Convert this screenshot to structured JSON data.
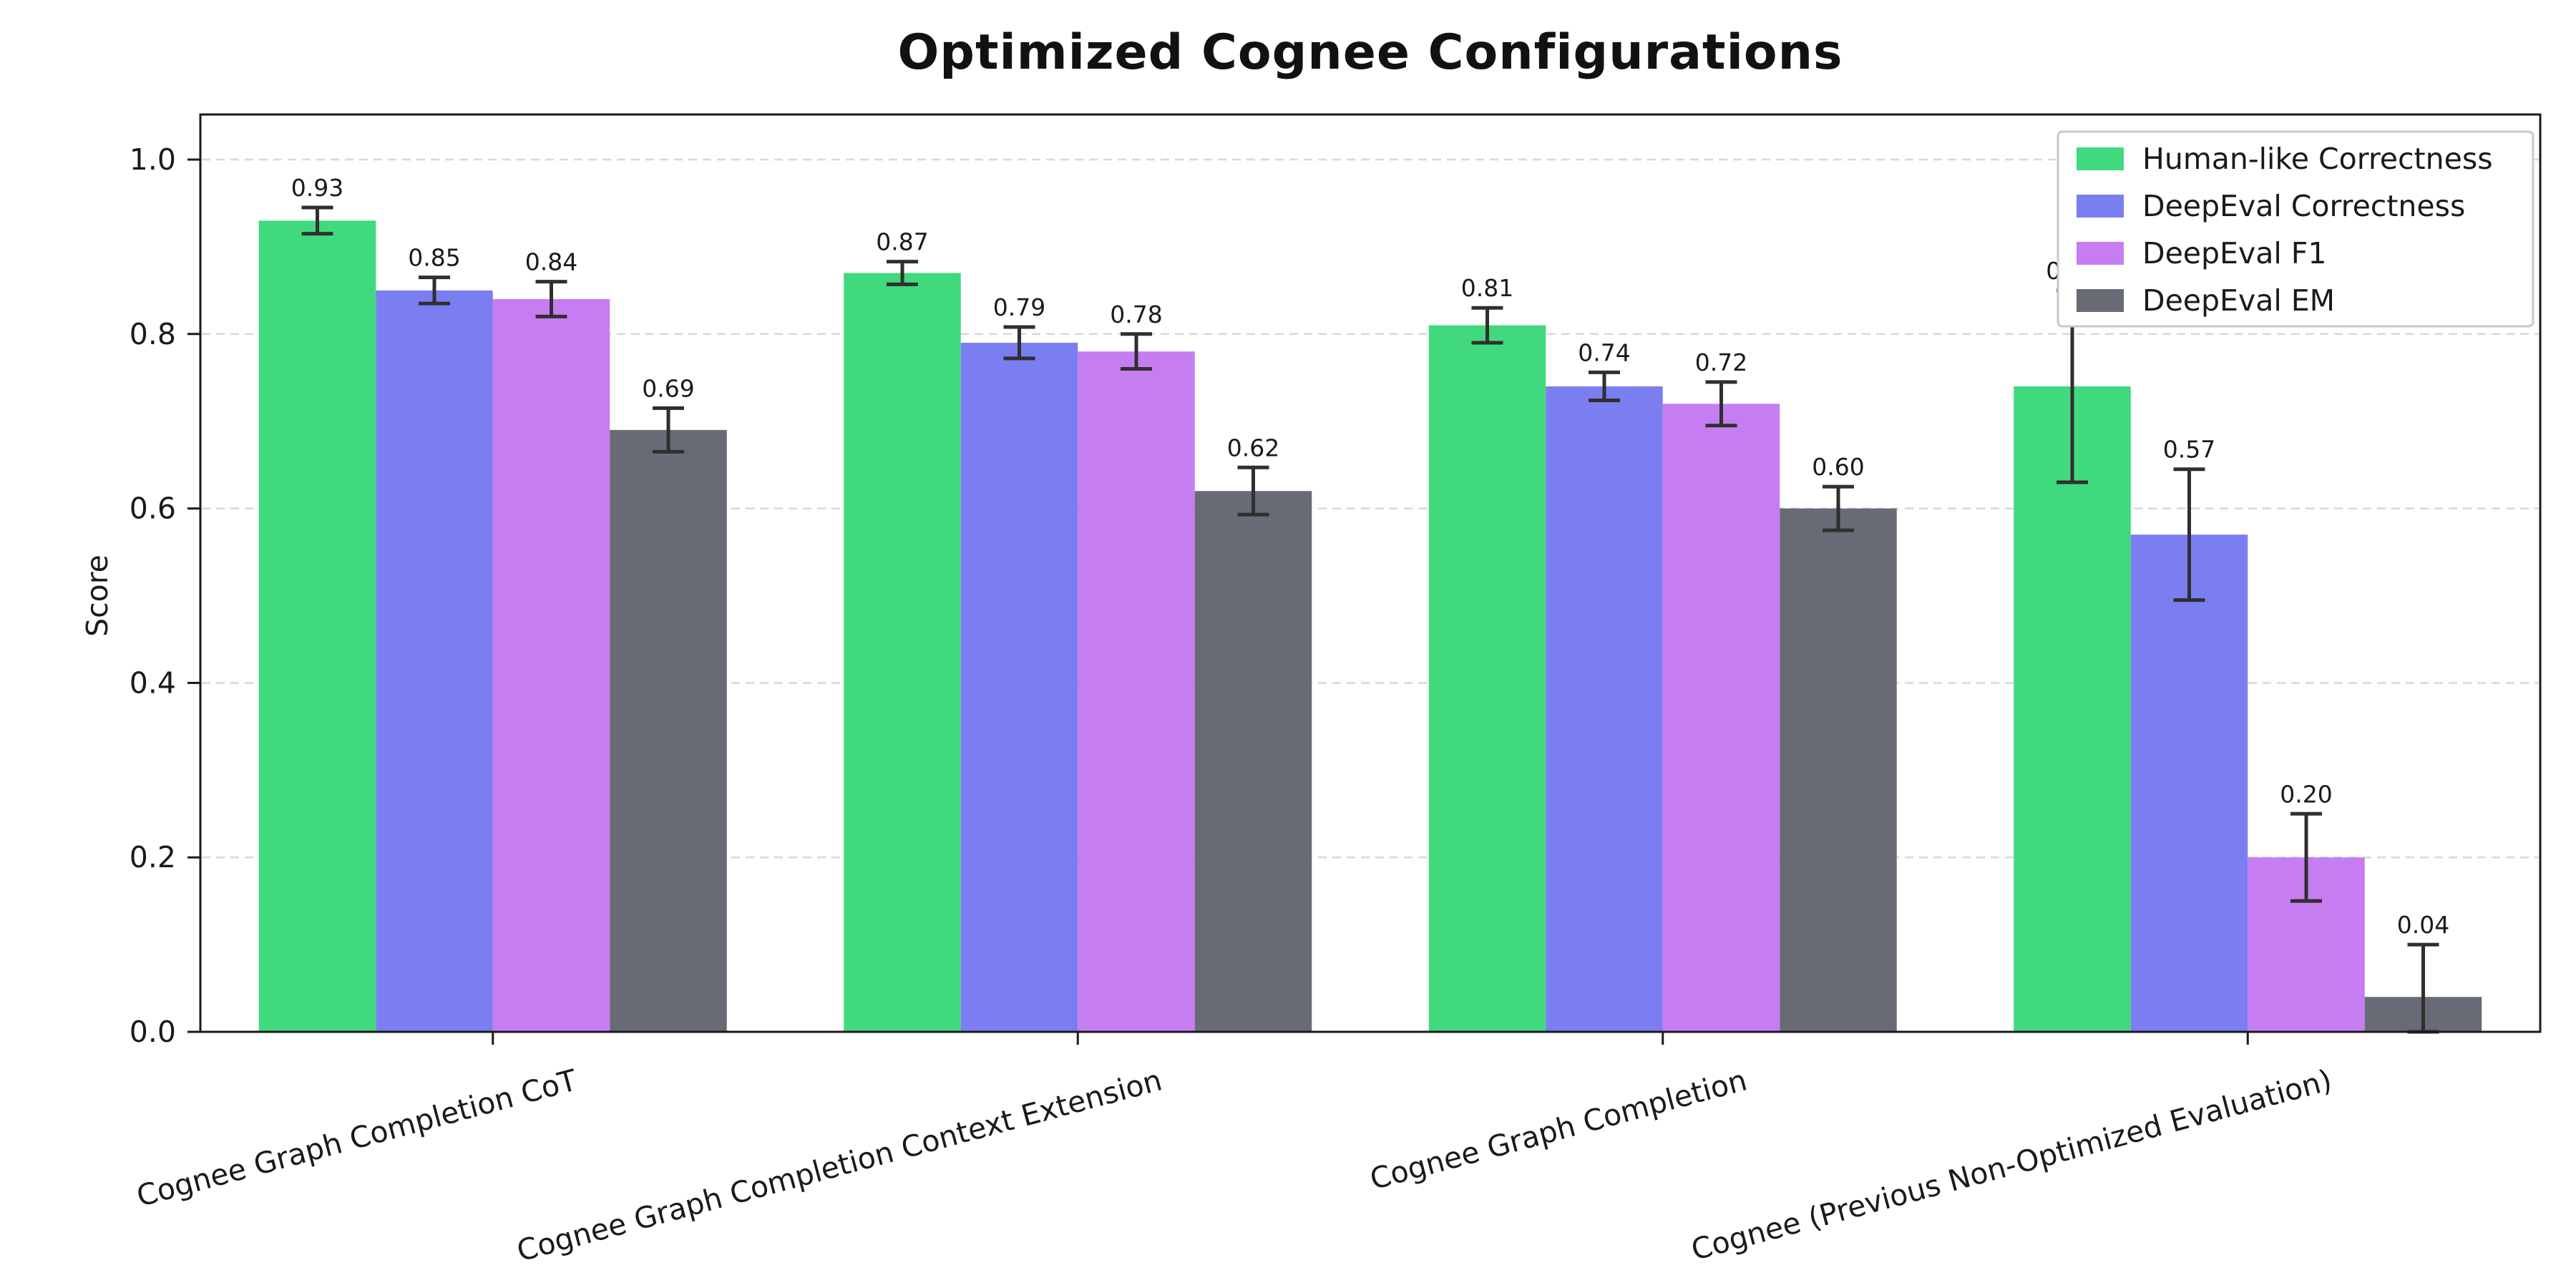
{
  "chart_data": {
    "type": "bar",
    "title": "Optimized Cognee Configurations",
    "xlabel": "",
    "ylabel": "Score",
    "ylim": [
      0,
      1.05
    ],
    "yticks": [
      0.0,
      0.2,
      0.4,
      0.6,
      0.8,
      1.0
    ],
    "grid": "dashed-horizontal",
    "legend_position": "upper-right",
    "value_label_decimals": 2,
    "categories": [
      "Cognee Graph Completion CoT",
      "Cognee Graph Completion Context Extension",
      "Cognee Graph Completion",
      "Cognee (Previous Non-Optimized Evaluation)"
    ],
    "series": [
      {
        "name": "Human-like Correctness",
        "color": "#41d97e",
        "values": [
          0.93,
          0.87,
          0.81,
          0.74
        ],
        "errors": [
          0.015,
          0.013,
          0.02,
          0.11
        ]
      },
      {
        "name": "DeepEval Correctness",
        "color": "#7b7ef0",
        "values": [
          0.85,
          0.79,
          0.74,
          0.57
        ],
        "errors": [
          0.015,
          0.018,
          0.016,
          0.075
        ]
      },
      {
        "name": "DeepEval F1",
        "color": "#c77df2",
        "values": [
          0.84,
          0.78,
          0.72,
          0.2
        ],
        "errors": [
          0.02,
          0.02,
          0.025,
          0.05
        ]
      },
      {
        "name": "DeepEval EM",
        "color": "#686b75",
        "values": [
          0.69,
          0.62,
          0.6,
          0.04
        ],
        "errors": [
          0.025,
          0.027,
          0.025,
          0.06
        ]
      }
    ],
    "colors": {
      "axis": "#1a1a1a",
      "grid": "#d8d8d8",
      "error_bar": "#2f2f2f",
      "value_label": "#1a1a1a",
      "legend_border": "#c9c9c9",
      "background": "#ffffff"
    }
  }
}
